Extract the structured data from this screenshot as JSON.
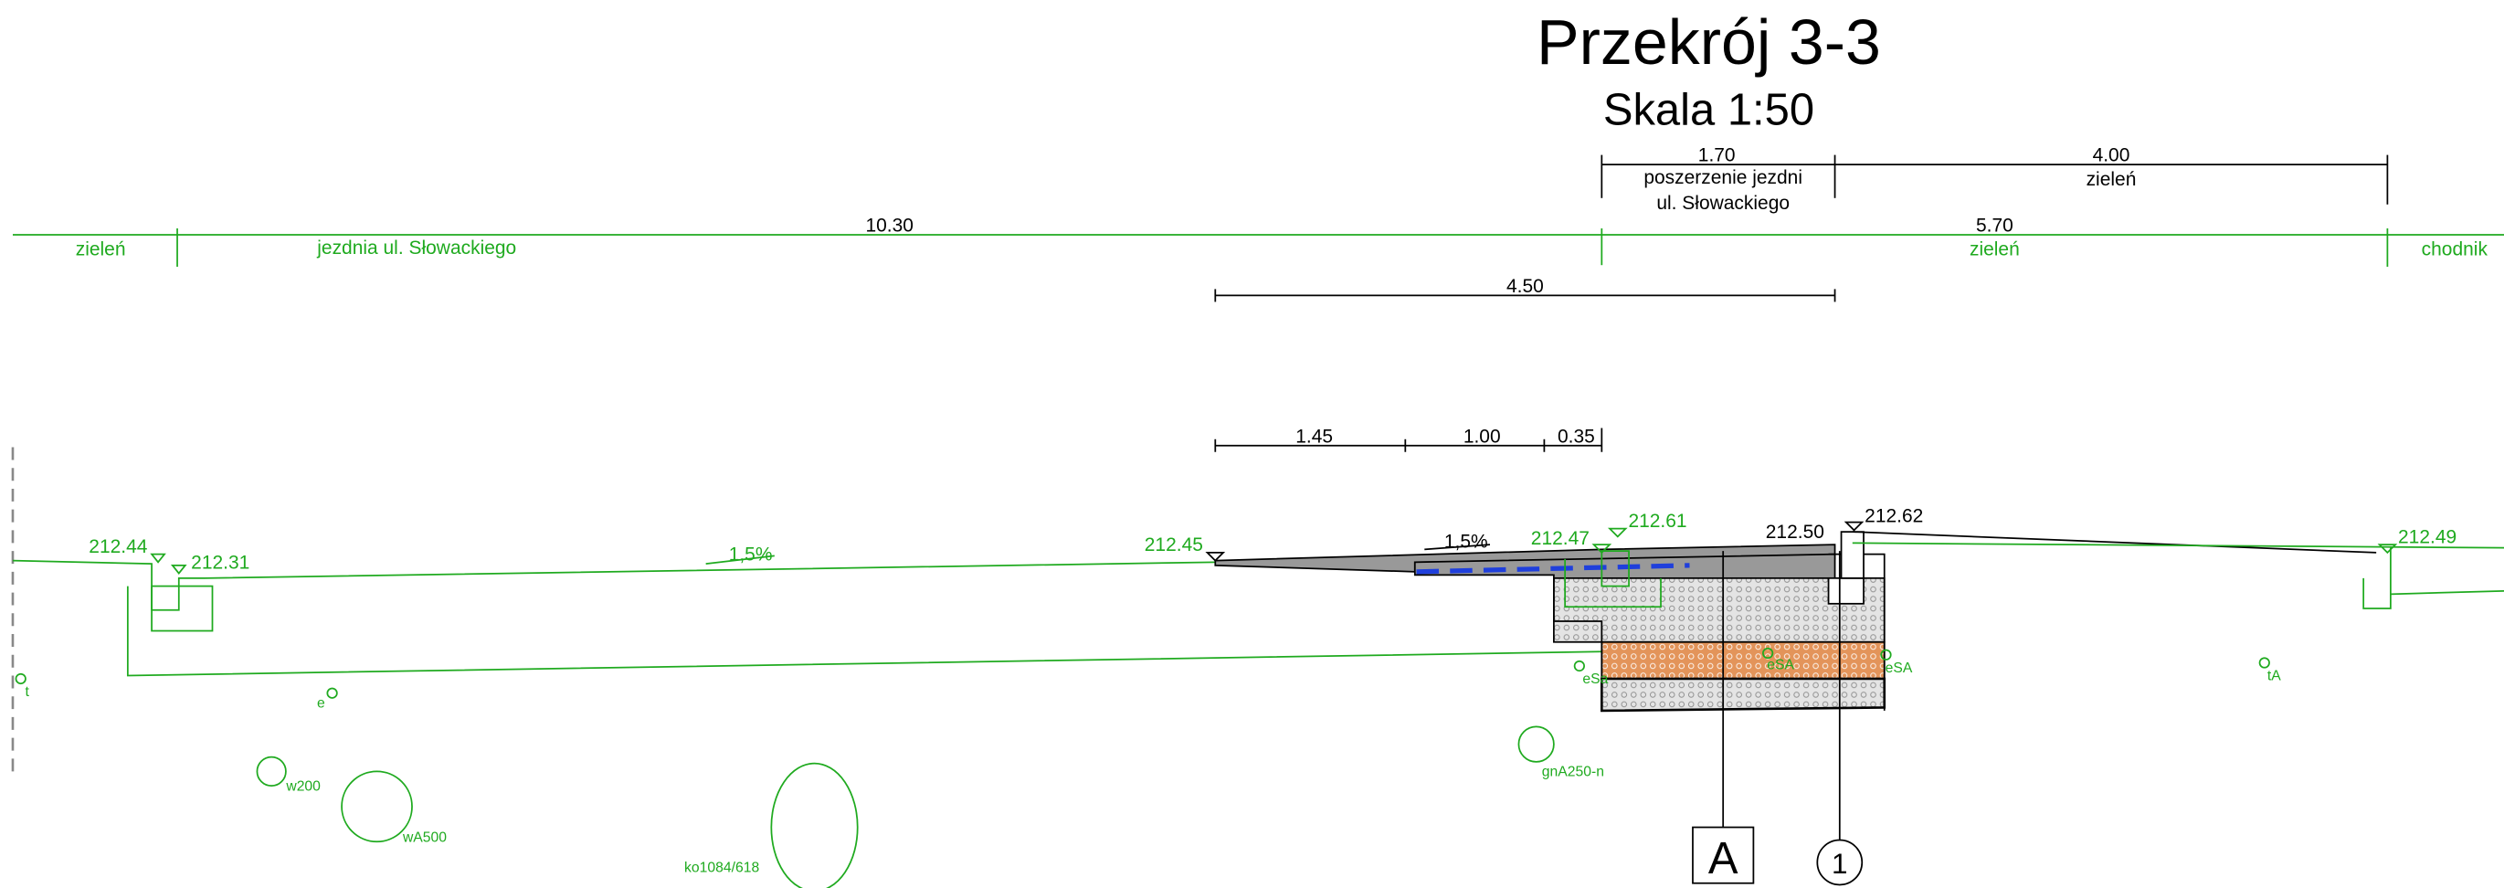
{
  "header": {
    "title": "Przekrój 3-3",
    "scale": "Skala 1:50"
  },
  "dimensions": {
    "top": [
      {
        "value": "1.70",
        "label": [
          "poszerzenie jezdni",
          "ul. Słowackiego"
        ]
      },
      {
        "value": "4.00",
        "label": [
          "zieleń"
        ]
      }
    ],
    "main": [
      {
        "value": "10.30"
      },
      {
        "value": "5.70"
      }
    ],
    "zones": [
      "zieleń",
      "jezdnia ul. Słowackiego",
      "zieleń",
      "chodnik"
    ],
    "mid": "4.50",
    "lower": [
      "1.45",
      "1.00",
      "0.35"
    ]
  },
  "elevations": [
    "212.44",
    "212.31",
    "212.45",
    "212.47",
    "212.61",
    "212.50",
    "212.62",
    "212.49"
  ],
  "slopes": [
    "1,5%",
    "1,5%"
  ],
  "utilities": [
    "t",
    "e",
    "w200",
    "wA500",
    "ko1084/618",
    "gnA250-n",
    "eSa",
    "eSA",
    "eSA",
    "tA"
  ],
  "markers": [
    "A",
    "1"
  ]
}
